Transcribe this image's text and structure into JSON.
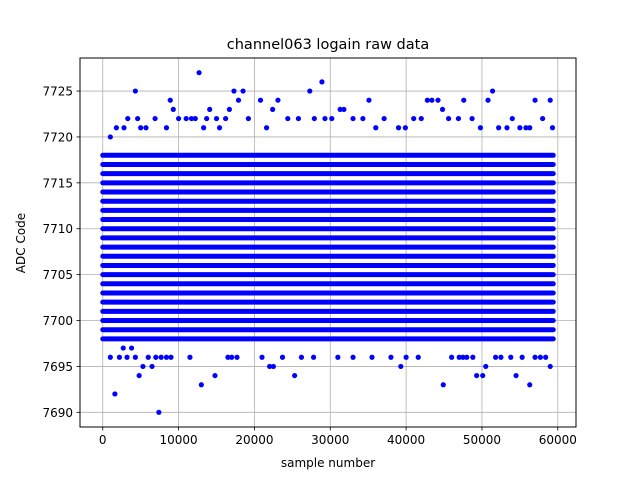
{
  "chart_data": {
    "type": "scatter",
    "title": "channel063 logain raw data",
    "xlabel": "sample number",
    "ylabel": "ADC Code",
    "xlim": [
      -3000,
      62400
    ],
    "ylim": [
      7688.4,
      7728.6
    ],
    "x_ticks": [
      0,
      10000,
      20000,
      30000,
      40000,
      50000,
      60000
    ],
    "x_tick_labels": [
      "0",
      "10000",
      "20000",
      "30000",
      "40000",
      "50000",
      "60000"
    ],
    "y_ticks": [
      7690,
      7695,
      7700,
      7705,
      7710,
      7715,
      7720,
      7725
    ],
    "y_tick_labels": [
      "7690",
      "7695",
      "7700",
      "7705",
      "7710",
      "7715",
      "7720",
      "7725"
    ],
    "grid": true,
    "marker_color": "#0000ff",
    "dense_band": {
      "x_range": [
        0,
        59400
      ],
      "y_low": 7698,
      "y_high": 7718
    },
    "points": [
      [
        1000,
        7696
      ],
      [
        1600,
        7692
      ],
      [
        2200,
        7696
      ],
      [
        2700,
        7697
      ],
      [
        3200,
        7696
      ],
      [
        3800,
        7697
      ],
      [
        4800,
        7694
      ],
      [
        4300,
        7696
      ],
      [
        5300,
        7695
      ],
      [
        6000,
        7696
      ],
      [
        6500,
        7695
      ],
      [
        7000,
        7696
      ],
      [
        7400,
        7690
      ],
      [
        7700,
        7696
      ],
      [
        8400,
        7696
      ],
      [
        9000,
        7696
      ],
      [
        11500,
        7696
      ],
      [
        13000,
        7693
      ],
      [
        14800,
        7694
      ],
      [
        16500,
        7696
      ],
      [
        17000,
        7696
      ],
      [
        17700,
        7696
      ],
      [
        21000,
        7696
      ],
      [
        22000,
        7695
      ],
      [
        22500,
        7695
      ],
      [
        23700,
        7696
      ],
      [
        25300,
        7694
      ],
      [
        26200,
        7696
      ],
      [
        27800,
        7696
      ],
      [
        31000,
        7696
      ],
      [
        33000,
        7696
      ],
      [
        35500,
        7696
      ],
      [
        38000,
        7696
      ],
      [
        39300,
        7695
      ],
      [
        40000,
        7696
      ],
      [
        41600,
        7696
      ],
      [
        44900,
        7693
      ],
      [
        46000,
        7696
      ],
      [
        47000,
        7696
      ],
      [
        47500,
        7696
      ],
      [
        48000,
        7696
      ],
      [
        48800,
        7696
      ],
      [
        49300,
        7694
      ],
      [
        50100,
        7694
      ],
      [
        50500,
        7695
      ],
      [
        51800,
        7696
      ],
      [
        52500,
        7696
      ],
      [
        53800,
        7696
      ],
      [
        54500,
        7694
      ],
      [
        55300,
        7696
      ],
      [
        56300,
        7693
      ],
      [
        57000,
        7696
      ],
      [
        57700,
        7696
      ],
      [
        58400,
        7696
      ],
      [
        59000,
        7695
      ],
      [
        1000,
        7720
      ],
      [
        1800,
        7721
      ],
      [
        2800,
        7721
      ],
      [
        3300,
        7722
      ],
      [
        4300,
        7725
      ],
      [
        4600,
        7722
      ],
      [
        5000,
        7721
      ],
      [
        5700,
        7721
      ],
      [
        6900,
        7722
      ],
      [
        8400,
        7721
      ],
      [
        8900,
        7724
      ],
      [
        9300,
        7723
      ],
      [
        10000,
        7722
      ],
      [
        11000,
        7722
      ],
      [
        11700,
        7722
      ],
      [
        12200,
        7722
      ],
      [
        12700,
        7727
      ],
      [
        13300,
        7721
      ],
      [
        13700,
        7722
      ],
      [
        14100,
        7723
      ],
      [
        15000,
        7722
      ],
      [
        15400,
        7721
      ],
      [
        16200,
        7722
      ],
      [
        16700,
        7723
      ],
      [
        17300,
        7725
      ],
      [
        17900,
        7724
      ],
      [
        18500,
        7725
      ],
      [
        19200,
        7722
      ],
      [
        20800,
        7724
      ],
      [
        21600,
        7721
      ],
      [
        22400,
        7723
      ],
      [
        23100,
        7724
      ],
      [
        24400,
        7722
      ],
      [
        25800,
        7722
      ],
      [
        27300,
        7725
      ],
      [
        27900,
        7722
      ],
      [
        28900,
        7726
      ],
      [
        29300,
        7722
      ],
      [
        30200,
        7722
      ],
      [
        31300,
        7723
      ],
      [
        31800,
        7723
      ],
      [
        33000,
        7722
      ],
      [
        34300,
        7722
      ],
      [
        35100,
        7724
      ],
      [
        36000,
        7721
      ],
      [
        37100,
        7722
      ],
      [
        39000,
        7721
      ],
      [
        39900,
        7721
      ],
      [
        41000,
        7722
      ],
      [
        42000,
        7722
      ],
      [
        42800,
        7724
      ],
      [
        43400,
        7724
      ],
      [
        44200,
        7724
      ],
      [
        44800,
        7723
      ],
      [
        45600,
        7722
      ],
      [
        46900,
        7722
      ],
      [
        47600,
        7724
      ],
      [
        48700,
        7722
      ],
      [
        49800,
        7721
      ],
      [
        50800,
        7724
      ],
      [
        51400,
        7725
      ],
      [
        52200,
        7721
      ],
      [
        53300,
        7721
      ],
      [
        54000,
        7722
      ],
      [
        55000,
        7721
      ],
      [
        55800,
        7721
      ],
      [
        56300,
        7721
      ],
      [
        57000,
        7724
      ],
      [
        58000,
        7722
      ],
      [
        59000,
        7724
      ],
      [
        59300,
        7721
      ]
    ]
  }
}
